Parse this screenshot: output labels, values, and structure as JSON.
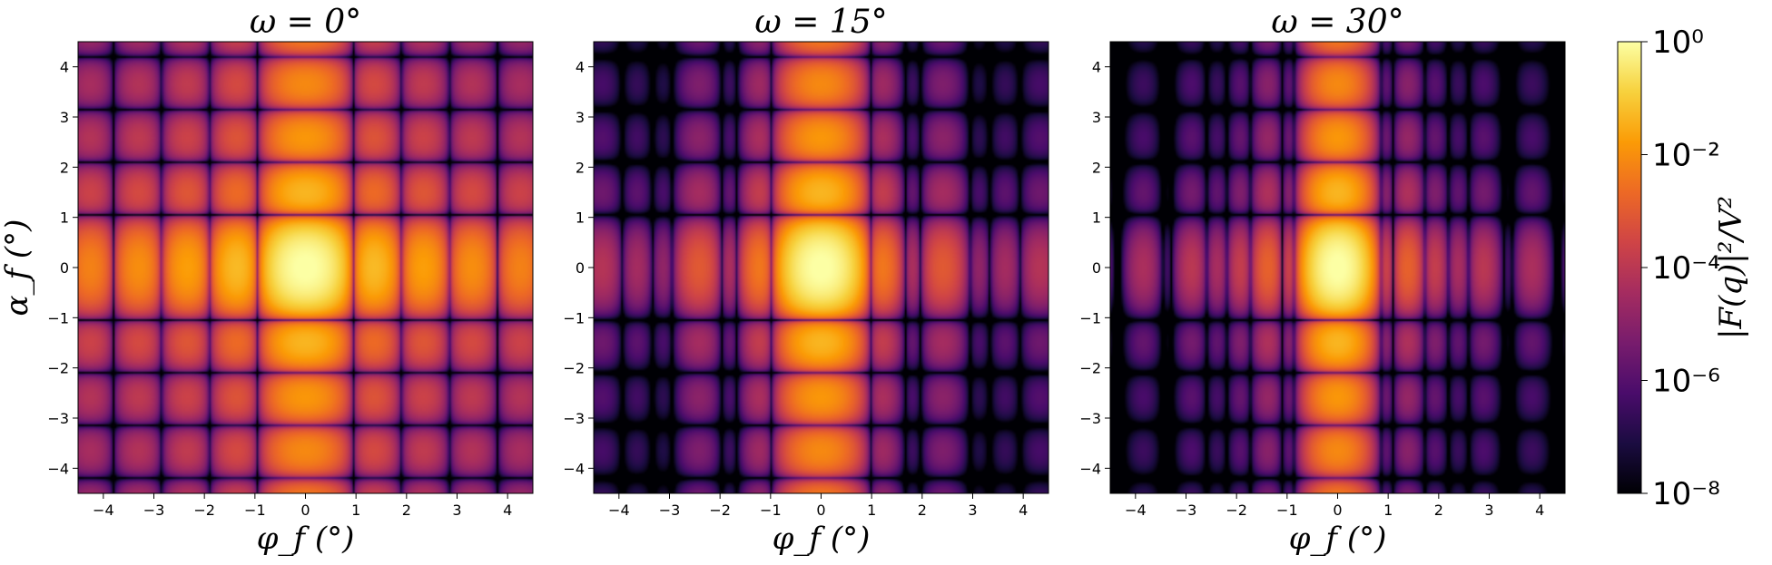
{
  "chart_data": [
    {
      "type": "heatmap",
      "title": "ω = 0°",
      "omega_deg": 0,
      "xlabel": "φ_f (°)",
      "ylabel": "α_f (°)",
      "xlim": [
        -4.5,
        4.5
      ],
      "ylim": [
        -4.5,
        4.5
      ],
      "xticks": [
        -4,
        -3,
        -2,
        -1,
        0,
        1,
        2,
        3,
        4
      ],
      "yticks": [
        -4,
        -3,
        -2,
        -1,
        0,
        1,
        2,
        3,
        4
      ],
      "xtick_labels": [
        "−4",
        "−3",
        "−2",
        "−1",
        "0",
        "1",
        "2",
        "3",
        "4"
      ],
      "ytick_labels": [
        "−4",
        "−3",
        "−2",
        "−1",
        "0",
        "1",
        "2",
        "3",
        "4"
      ]
    },
    {
      "type": "heatmap",
      "title": "ω = 15°",
      "omega_deg": 15,
      "xlabel": "φ_f (°)",
      "ylabel": "",
      "xlim": [
        -4.5,
        4.5
      ],
      "ylim": [
        -4.5,
        4.5
      ],
      "xticks": [
        -4,
        -3,
        -2,
        -1,
        0,
        1,
        2,
        3,
        4
      ],
      "yticks": [
        -4,
        -3,
        -2,
        -1,
        0,
        1,
        2,
        3,
        4
      ],
      "xtick_labels": [
        "−4",
        "−3",
        "−2",
        "−1",
        "0",
        "1",
        "2",
        "3",
        "4"
      ],
      "ytick_labels": [
        "−4",
        "−3",
        "−2",
        "−1",
        "0",
        "1",
        "2",
        "3",
        "4"
      ]
    },
    {
      "type": "heatmap",
      "title": "ω = 30°",
      "omega_deg": 30,
      "xlabel": "φ_f (°)",
      "ylabel": "",
      "xlim": [
        -4.5,
        4.5
      ],
      "ylim": [
        -4.5,
        4.5
      ],
      "xticks": [
        -4,
        -3,
        -2,
        -1,
        0,
        1,
        2,
        3,
        4
      ],
      "yticks": [
        -4,
        -3,
        -2,
        -1,
        0,
        1,
        2,
        3,
        4
      ],
      "xtick_labels": [
        "−4",
        "−3",
        "−2",
        "−1",
        "0",
        "1",
        "2",
        "3",
        "4"
      ],
      "ytick_labels": [
        "−4",
        "−3",
        "−2",
        "−1",
        "0",
        "1",
        "2",
        "3",
        "4"
      ]
    }
  ],
  "colorbar": {
    "label": "|F(q)|²/V²",
    "scale": "log",
    "range": [
      1e-08,
      1
    ],
    "colormap": "inferno",
    "ticks": [
      1,
      0.01,
      0.0001,
      1e-06,
      1e-08
    ],
    "tick_labels": [
      "10⁰",
      "10⁻²",
      "10⁻⁴",
      "10⁻⁶",
      "10⁻⁸"
    ]
  },
  "colors": {
    "inferno": [
      "#000004",
      "#1b0c41",
      "#4a0c6b",
      "#781c6d",
      "#a52c60",
      "#cf4446",
      "#ed6925",
      "#fb9b06",
      "#f7d13d",
      "#fcffa4"
    ]
  }
}
